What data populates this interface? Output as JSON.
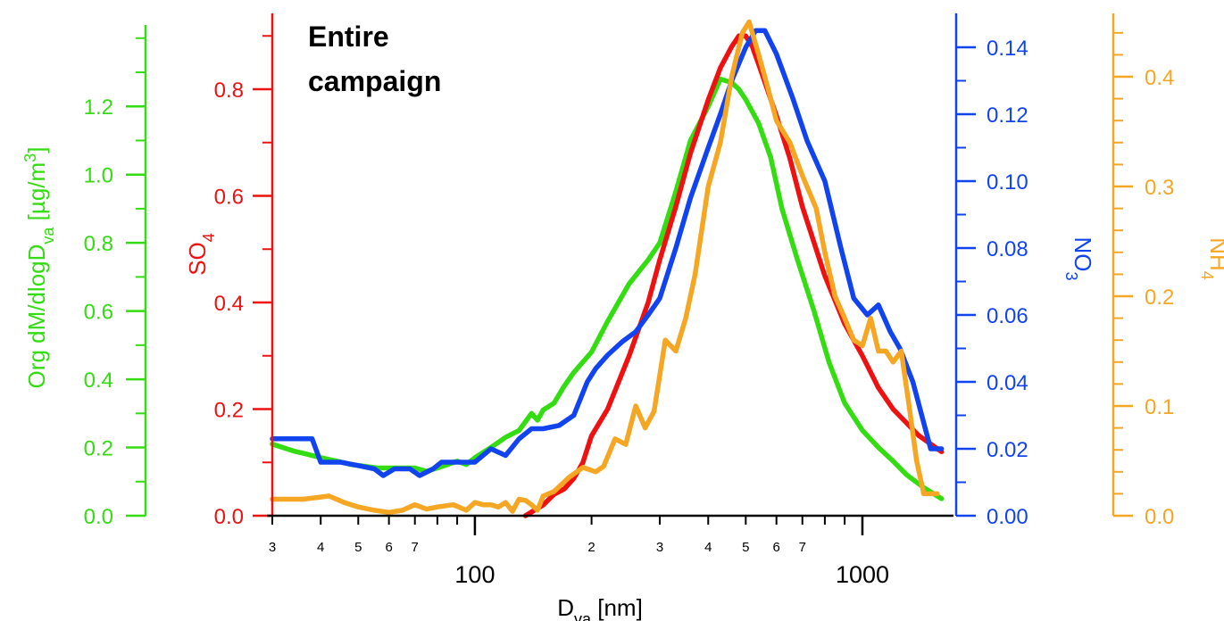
{
  "chart_data": {
    "type": "line",
    "annotation_line1": "Entire",
    "annotation_line2": "campaign",
    "xscale": "log",
    "xlim": [
      30,
      1700
    ],
    "x_axis": {
      "label_main": "D",
      "label_sub": "va",
      "label_rest": " [nm]",
      "major_ticks": [
        100,
        1000
      ],
      "major_labels": [
        "100",
        "1000"
      ],
      "minor_ticks": [
        30,
        40,
        50,
        60,
        70,
        200,
        300,
        400,
        500,
        600,
        700
      ],
      "minor_labels": [
        "3",
        "4",
        "5",
        "6",
        "7",
        "2",
        "3",
        "4",
        "5",
        "6",
        "7"
      ]
    },
    "axes": {
      "org": {
        "color": "#33dd11",
        "side": "left-outer",
        "label_pre": "Org dM/dlogD",
        "label_sub": "va",
        "label_post": " [µg/m",
        "label_sup": "3",
        "label_end": "]",
        "ylim": [
          0,
          1.3
        ],
        "ticks": [
          0.0,
          0.2,
          0.4,
          0.6,
          0.8,
          1.0,
          1.2
        ],
        "tick_labels": [
          "0.0",
          "0.2",
          "0.4",
          "0.6",
          "0.8",
          "1.0",
          "1.2"
        ]
      },
      "so4": {
        "color": "#ee1111",
        "side": "left-inner",
        "label_pre": "SO",
        "label_sub": "4",
        "ylim": [
          0,
          0.8
        ],
        "ticks": [
          0.0,
          0.2,
          0.4,
          0.6,
          0.8
        ],
        "tick_labels": [
          "0.0",
          "0.2",
          "0.4",
          "0.6",
          "0.8"
        ]
      },
      "no3": {
        "color": "#1144ee",
        "side": "right-inner",
        "label_pre": "NO",
        "label_sub": "3",
        "ylim": [
          0,
          0.14
        ],
        "ticks": [
          0.0,
          0.02,
          0.04,
          0.06,
          0.08,
          0.1,
          0.12,
          0.14
        ],
        "tick_labels": [
          "0.00",
          "0.02",
          "0.04",
          "0.06",
          "0.08",
          "0.10",
          "0.12",
          "0.14"
        ]
      },
      "nh4": {
        "color": "#f5a623",
        "side": "right-outer",
        "label_pre": "NH",
        "label_sub": "4",
        "ylim": [
          0,
          0.4
        ],
        "ticks": [
          0.0,
          0.1,
          0.2,
          0.3,
          0.4
        ],
        "tick_labels": [
          "0.0",
          "0.1",
          "0.2",
          "0.3",
          "0.4"
        ]
      }
    },
    "series": [
      {
        "axis": "org",
        "color": "#33dd11",
        "x": [
          30,
          34,
          37,
          40,
          44,
          48,
          52,
          56,
          60,
          65,
          70,
          75,
          80,
          85,
          90,
          95,
          100,
          110,
          120,
          130,
          140,
          145,
          150,
          160,
          170,
          180,
          200,
          220,
          250,
          280,
          300,
          330,
          360,
          400,
          430,
          460,
          480,
          500,
          540,
          580,
          620,
          680,
          750,
          820,
          900,
          1000,
          1100,
          1200,
          1300,
          1450,
          1600
        ],
        "y": [
          0.21,
          0.19,
          0.18,
          0.17,
          0.16,
          0.15,
          0.145,
          0.14,
          0.14,
          0.14,
          0.14,
          0.13,
          0.14,
          0.15,
          0.16,
          0.15,
          0.17,
          0.2,
          0.23,
          0.25,
          0.3,
          0.28,
          0.31,
          0.33,
          0.38,
          0.42,
          0.48,
          0.57,
          0.68,
          0.75,
          0.8,
          0.95,
          1.1,
          1.2,
          1.28,
          1.27,
          1.25,
          1.22,
          1.15,
          1.05,
          0.9,
          0.75,
          0.6,
          0.45,
          0.33,
          0.25,
          0.2,
          0.16,
          0.12,
          0.08,
          0.05
        ]
      },
      {
        "axis": "so4",
        "color": "#ee1111",
        "x": [
          135,
          150,
          160,
          170,
          180,
          190,
          200,
          220,
          250,
          280,
          300,
          330,
          360,
          400,
          430,
          460,
          480,
          500,
          520,
          550,
          600,
          650,
          700,
          800,
          900,
          1000,
          1100,
          1200,
          1400,
          1600
        ],
        "y": [
          0.0,
          0.02,
          0.04,
          0.05,
          0.07,
          0.1,
          0.15,
          0.2,
          0.3,
          0.4,
          0.48,
          0.58,
          0.68,
          0.78,
          0.84,
          0.88,
          0.9,
          0.9,
          0.88,
          0.83,
          0.75,
          0.67,
          0.58,
          0.45,
          0.36,
          0.3,
          0.24,
          0.2,
          0.15,
          0.12
        ]
      },
      {
        "axis": "no3",
        "color": "#1144ee",
        "x": [
          30,
          36,
          38,
          40,
          45,
          50,
          55,
          58,
          62,
          68,
          72,
          78,
          82,
          90,
          100,
          110,
          120,
          130,
          140,
          150,
          165,
          180,
          195,
          205,
          220,
          240,
          260,
          280,
          300,
          330,
          360,
          400,
          430,
          460,
          500,
          530,
          560,
          600,
          660,
          720,
          800,
          880,
          950,
          1030,
          1100,
          1180,
          1250,
          1350,
          1500,
          1600
        ],
        "y": [
          0.023,
          0.023,
          0.023,
          0.016,
          0.016,
          0.015,
          0.014,
          0.012,
          0.014,
          0.014,
          0.012,
          0.014,
          0.016,
          0.016,
          0.016,
          0.02,
          0.018,
          0.023,
          0.026,
          0.026,
          0.027,
          0.03,
          0.04,
          0.044,
          0.048,
          0.052,
          0.055,
          0.06,
          0.065,
          0.08,
          0.095,
          0.11,
          0.12,
          0.13,
          0.14,
          0.145,
          0.145,
          0.138,
          0.125,
          0.112,
          0.1,
          0.08,
          0.065,
          0.06,
          0.063,
          0.055,
          0.05,
          0.04,
          0.02,
          0.02
        ]
      },
      {
        "axis": "nh4",
        "color": "#f5a623",
        "x": [
          30,
          36,
          38,
          40,
          42,
          46,
          50,
          55,
          60,
          65,
          70,
          75,
          80,
          88,
          95,
          100,
          105,
          110,
          115,
          120,
          125,
          130,
          135,
          140,
          145,
          150,
          160,
          175,
          190,
          205,
          215,
          230,
          245,
          260,
          275,
          290,
          310,
          330,
          350,
          370,
          400,
          430,
          460,
          490,
          510,
          540,
          570,
          600,
          650,
          700,
          760,
          800,
          850,
          900,
          950,
          1000,
          1050,
          1100,
          1150,
          1200,
          1260,
          1320,
          1380,
          1440,
          1500,
          1560
        ],
        "y": [
          0.015,
          0.015,
          0.016,
          0.017,
          0.018,
          0.012,
          0.008,
          0.005,
          0.003,
          0.005,
          0.01,
          0.006,
          0.008,
          0.01,
          0.005,
          0.012,
          0.01,
          0.01,
          0.008,
          0.012,
          0.004,
          0.015,
          0.014,
          0.01,
          0.005,
          0.018,
          0.022,
          0.035,
          0.044,
          0.04,
          0.045,
          0.07,
          0.065,
          0.1,
          0.08,
          0.095,
          0.16,
          0.15,
          0.18,
          0.22,
          0.3,
          0.34,
          0.4,
          0.44,
          0.45,
          0.42,
          0.39,
          0.36,
          0.34,
          0.31,
          0.28,
          0.24,
          0.2,
          0.18,
          0.16,
          0.155,
          0.18,
          0.15,
          0.15,
          0.14,
          0.15,
          0.1,
          0.05,
          0.02,
          0.02,
          0.02
        ]
      }
    ]
  }
}
